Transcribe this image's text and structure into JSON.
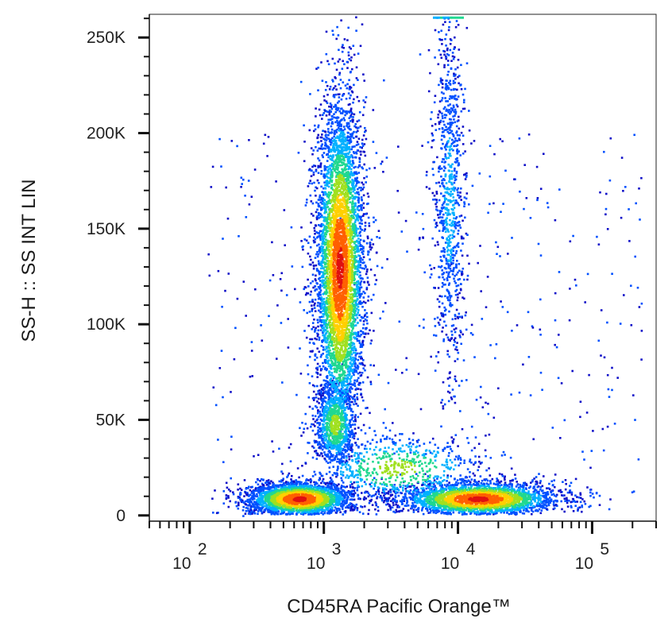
{
  "chart_data": {
    "type": "scatter",
    "subtype": "flow-cytometry density dot plot",
    "xlabel": "CD45RA Pacific Orange™",
    "ylabel": "SS-H :: SS INT LIN",
    "x_scale": "log",
    "y_scale": "linear",
    "xlim": [
      50,
      300000
    ],
    "ylim": [
      -3000,
      262144
    ],
    "x_ticks": [
      {
        "value": 100,
        "base": "10",
        "exp": "2"
      },
      {
        "value": 1000,
        "base": "10",
        "exp": "3"
      },
      {
        "value": 10000,
        "base": "10",
        "exp": "4"
      },
      {
        "value": 100000,
        "base": "10",
        "exp": "5"
      }
    ],
    "y_ticks": [
      {
        "value": 0,
        "label": "0"
      },
      {
        "value": 50000,
        "label": "50K"
      },
      {
        "value": 100000,
        "label": "100K"
      },
      {
        "value": 150000,
        "label": "150K"
      },
      {
        "value": 200000,
        "label": "200K"
      },
      {
        "value": 250000,
        "label": "250K"
      }
    ],
    "populations": [
      {
        "label": "",
        "x_center": 1300,
        "x_spread_log": 0.09,
        "y_center": 130000,
        "y_spread": 45000,
        "y_min": 60000,
        "y_max": 262000,
        "n": 5200,
        "density": "high"
      },
      {
        "label": "",
        "x_center": 1200,
        "x_spread_log": 0.08,
        "y_center": 48000,
        "y_spread": 12000,
        "y_min": 28000,
        "y_max": 80000,
        "n": 1100,
        "density": "medium"
      },
      {
        "label": "",
        "x_center": 650,
        "x_spread_log": 0.2,
        "y_center": 9000,
        "y_spread": 4500,
        "y_min": 1000,
        "y_max": 22000,
        "n": 2600,
        "density": "high"
      },
      {
        "label": "",
        "x_center": 14000,
        "x_spread_log": 0.3,
        "y_center": 9000,
        "y_spread": 4500,
        "y_min": 1000,
        "y_max": 24000,
        "n": 2800,
        "density": "high"
      },
      {
        "label": "",
        "x_center": 8500,
        "x_spread_log": 0.06,
        "y_center": 165000,
        "y_spread": 55000,
        "y_min": 55000,
        "y_max": 262000,
        "n": 900,
        "density": "low"
      },
      {
        "label": "",
        "x_center": 3500,
        "x_spread_log": 0.35,
        "y_center": 25000,
        "y_spread": 10000,
        "y_min": 12000,
        "y_max": 45000,
        "n": 700,
        "density": "medium"
      }
    ],
    "grid": false,
    "legend": "none",
    "colormap": [
      "#1010c8",
      "#0050ff",
      "#00b0ff",
      "#20d890",
      "#a0e020",
      "#ffd000",
      "#ff6000",
      "#e01010"
    ]
  }
}
